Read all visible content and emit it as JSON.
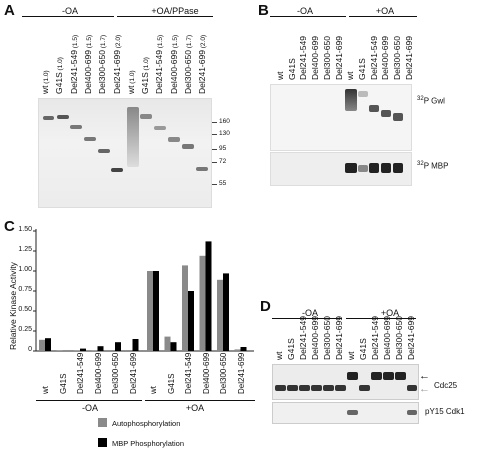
{
  "panels": {
    "a": "A",
    "b": "B",
    "c": "C",
    "d": "D"
  },
  "panelA": {
    "group_minus": "-OA",
    "group_plus": "+OA/PPase",
    "lanes": [
      {
        "name": "wt",
        "ratio": "(1.0)"
      },
      {
        "name": "G41S",
        "ratio": "(1.0)"
      },
      {
        "name": "Del241-549",
        "ratio": "(1.5)"
      },
      {
        "name": "Del400-699",
        "ratio": "(1.5)"
      },
      {
        "name": "Del300-650",
        "ratio": "(1.7)"
      },
      {
        "name": "Del241-699",
        "ratio": "(2.0)"
      },
      {
        "name": "wt",
        "ratio": "(1.0)"
      },
      {
        "name": "G41S",
        "ratio": "(1.0)"
      },
      {
        "name": "Del241-549",
        "ratio": "(1.5)"
      },
      {
        "name": "Del400-699",
        "ratio": "(1.5)"
      },
      {
        "name": "Del300-650",
        "ratio": "(1.7)"
      },
      {
        "name": "Del241-699",
        "ratio": "(2.0)"
      }
    ],
    "markers": [
      "160",
      "130",
      "95",
      "72",
      "55"
    ]
  },
  "panelB": {
    "group_minus": "-OA",
    "group_plus": "+OA",
    "lanes": [
      "wt",
      "G41S",
      "Del241-549",
      "Del400-699",
      "Del300-650",
      "Del241-699",
      "wt",
      "G41S",
      "Del241-549",
      "Del400-699",
      "Del300-650",
      "Del241-699"
    ],
    "sig_top": {
      "sup": "32",
      "text": "P Gwl"
    },
    "sig_bottom": {
      "sup": "32",
      "text": "P MBP"
    }
  },
  "panelD": {
    "group_minus": "-OA",
    "group_plus": "+OA",
    "lanes": [
      "wt",
      "G41S",
      "Del241-549",
      "Del400-699",
      "Del300-650",
      "Del241-699",
      "wt",
      "G41S",
      "Del241-549",
      "Del400-699",
      "Del300-650",
      "Del241-699"
    ],
    "label_cdc25": "Cdc25",
    "label_pY": "pY15 Cdk1"
  },
  "chart_data": {
    "type": "bar",
    "title": "",
    "xlabel": "",
    "ylabel": "Relative Kinase Activity",
    "ylim": [
      0,
      1.5
    ],
    "yticks": [
      "0",
      "0.25",
      "0.50",
      "0.75",
      "1.00",
      "1.25",
      "1.50"
    ],
    "categories": [
      "wt",
      "G41S",
      "Del241-549",
      "Del400-699",
      "Del300-650",
      "Del241-699",
      "wt",
      "G41S",
      "Del241-549",
      "Del400-699",
      "Del300-650",
      "Del241-699"
    ],
    "groups": [
      "-OA",
      "+OA"
    ],
    "series": [
      {
        "name": "Autophosphorylation",
        "color": "#8a8a8a",
        "values": [
          0.14,
          0.01,
          0.01,
          0.01,
          0.0,
          0.0,
          1.0,
          0.18,
          1.07,
          1.19,
          0.89,
          0.02
        ]
      },
      {
        "name": "MBP Phosphorylation",
        "color": "#000000",
        "values": [
          0.16,
          0.0,
          0.03,
          0.06,
          0.11,
          0.15,
          1.0,
          0.11,
          0.75,
          1.37,
          0.97,
          0.05
        ]
      }
    ],
    "legend": "bottom"
  }
}
